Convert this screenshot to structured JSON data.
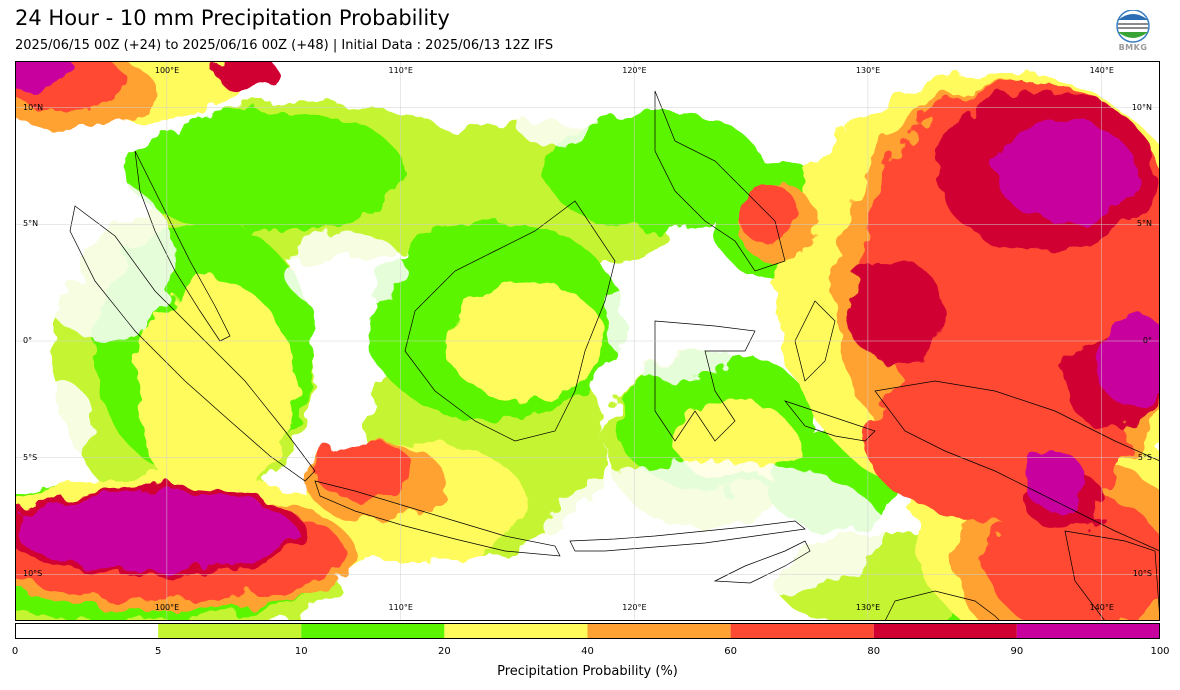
{
  "header": {
    "title": "24 Hour - 10 mm Precipitation Probability",
    "subtitle": "2025/06/15 00Z (+24) to 2025/06/16 00Z (+48) | Initial Data : 2025/06/13 12Z IFS"
  },
  "logo": {
    "text": "BMKG",
    "icon": "bmkg-logo-icon"
  },
  "map": {
    "extent": {
      "lon": [
        93.5,
        142.5
      ],
      "lat": [
        -12,
        12
      ]
    },
    "lon_labels": [
      "100°E",
      "110°E",
      "120°E",
      "130°E",
      "140°E"
    ],
    "lon_values": [
      100,
      110,
      120,
      130,
      140
    ],
    "lat_labels": [
      "10°N",
      "5°N",
      "0°",
      "5°S",
      "10°S"
    ],
    "lat_values": [
      10,
      5,
      0,
      -5,
      -10
    ]
  },
  "colorbar": {
    "label": "Precipitation Probability (%)",
    "ticks": [
      "0",
      "5",
      "10",
      "20",
      "40",
      "60",
      "80",
      "90",
      "100"
    ],
    "bins": [
      {
        "from": 0,
        "to": 5,
        "color": "#ffffff"
      },
      {
        "from": 5,
        "to": 10,
        "color": "#c5f531"
      },
      {
        "from": 10,
        "to": 20,
        "color": "#5cf500"
      },
      {
        "from": 20,
        "to": 40,
        "color": "#fffb5c"
      },
      {
        "from": 40,
        "to": 60,
        "color": "#ffa233"
      },
      {
        "from": 60,
        "to": 80,
        "color": "#ff4a33"
      },
      {
        "from": 80,
        "to": 90,
        "color": "#d10033"
      },
      {
        "from": 90,
        "to": 100,
        "color": "#c7009e"
      }
    ]
  }
}
